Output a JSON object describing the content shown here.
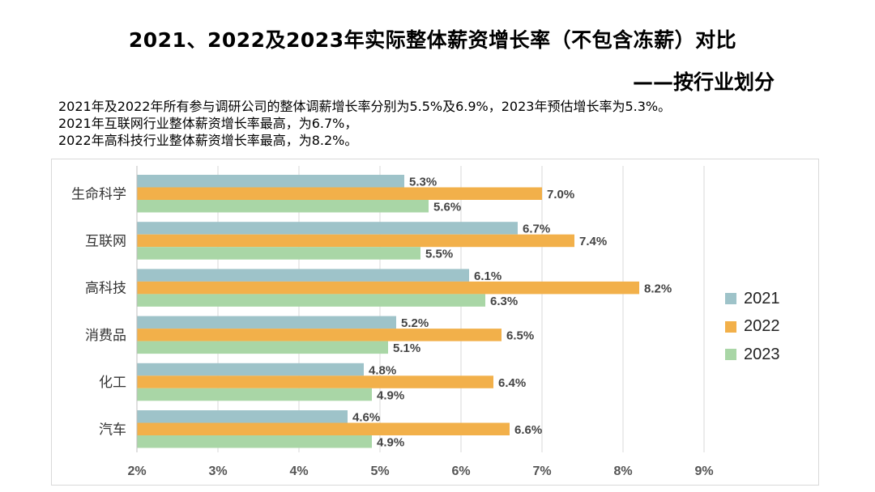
{
  "header": {
    "title": "2021、2022及2023年实际整体薪资增长率（不包含冻薪）对比",
    "subtitle": "——按行业划分"
  },
  "notes": [
    "2021年及2022年所有参与调研公司的整体调薪增长率分别为5.5%及6.9%，2023年预估增长率为5.3%。",
    "2021年互联网行业整体薪资增长率最高，为6.7%，",
    "2022年高科技行业整体薪资增长率最高，为8.2%。"
  ],
  "chart_data": {
    "type": "bar",
    "orientation": "horizontal",
    "categories": [
      "生命科学",
      "互联网",
      "高科技",
      "消费品",
      "化工",
      "汽车"
    ],
    "series": [
      {
        "name": "2021",
        "values": [
          5.3,
          6.7,
          6.1,
          5.2,
          4.8,
          4.6
        ],
        "labels": [
          "5.3%",
          "6.7%",
          "6.1%",
          "5.2%",
          "4.8%",
          "4.6%"
        ],
        "color": "#9ec3c9"
      },
      {
        "name": "2022",
        "values": [
          7.0,
          7.4,
          8.2,
          6.5,
          6.4,
          6.6
        ],
        "labels": [
          "7.0%",
          "7.4%",
          "8.2%",
          "6.5%",
          "6.4%",
          "6.6%"
        ],
        "color": "#f2b04a"
      },
      {
        "name": "2023",
        "values": [
          5.6,
          5.5,
          6.3,
          5.1,
          4.9,
          4.9
        ],
        "labels": [
          "5.6%",
          "5.5%",
          "6.3%",
          "5.1%",
          "4.9%",
          "4.9%"
        ],
        "color": "#a9d6a6"
      }
    ],
    "xlim": [
      2,
      9
    ],
    "xticks": [
      "2%",
      "3%",
      "4%",
      "5%",
      "6%",
      "7%",
      "8%",
      "9%"
    ],
    "grid": "vertical",
    "legend": "right",
    "xlabel": "",
    "ylabel": ""
  }
}
